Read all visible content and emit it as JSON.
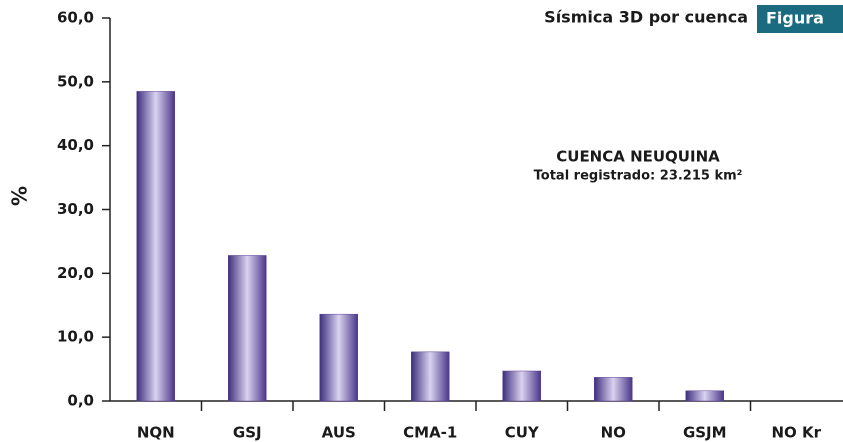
{
  "chart_data": {
    "type": "bar",
    "title": "Sísmica 3D por cuenca",
    "badge": "Figura",
    "y_label": "%",
    "annotations": [
      "CUENCA NEUQUINA",
      "Total registrado: 23.215 km²"
    ],
    "categories": [
      "NQN",
      "GSJ",
      "AUS",
      "CMA-1",
      "CUY",
      "NO",
      "GSJM",
      "NO Kr"
    ],
    "values": [
      48.5,
      22.8,
      13.6,
      7.7,
      4.7,
      3.7,
      1.6,
      0
    ],
    "color": "#5a3f95",
    "ylim": [
      0,
      60
    ],
    "yticks": [
      {
        "value": 0,
        "label": "0,0"
      },
      {
        "value": 10,
        "label": "10,0"
      },
      {
        "value": 20,
        "label": "20,0"
      },
      {
        "value": 30,
        "label": "30,0"
      },
      {
        "value": 40,
        "label": "40,0"
      },
      {
        "value": 50,
        "label": "50,0"
      },
      {
        "value": 60,
        "label": "60,0"
      }
    ],
    "grid": false
  }
}
